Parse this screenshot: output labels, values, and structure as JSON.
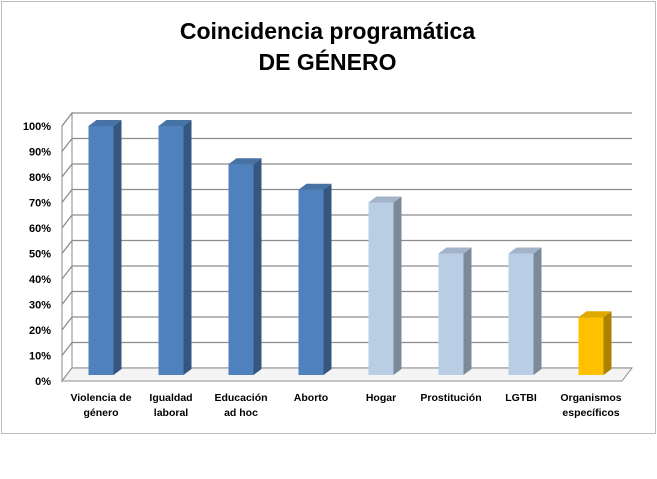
{
  "chart_data": {
    "type": "bar",
    "title_lines": [
      "Coincidencia programática",
      "DE GÉNERO"
    ],
    "categories": [
      [
        "Violencia de",
        "género"
      ],
      [
        "Igualdad",
        "laboral"
      ],
      [
        "Educación",
        "ad hoc"
      ],
      [
        "Aborto"
      ],
      [
        "Hogar"
      ],
      [
        "Prostitución"
      ],
      [
        "LGTBI"
      ],
      [
        "Organismos",
        "específicos"
      ]
    ],
    "values": [
      100,
      100,
      85,
      75,
      70,
      50,
      50,
      25
    ],
    "ylim": [
      0,
      100
    ],
    "ytick_step": 10,
    "ytick_suffix": "%",
    "grid": true,
    "bar_colors": [
      "#4f81bd",
      "#4f81bd",
      "#4f81bd",
      "#4f81bd",
      "#b9cde5",
      "#b9cde5",
      "#b9cde5",
      "#ffc000"
    ]
  }
}
